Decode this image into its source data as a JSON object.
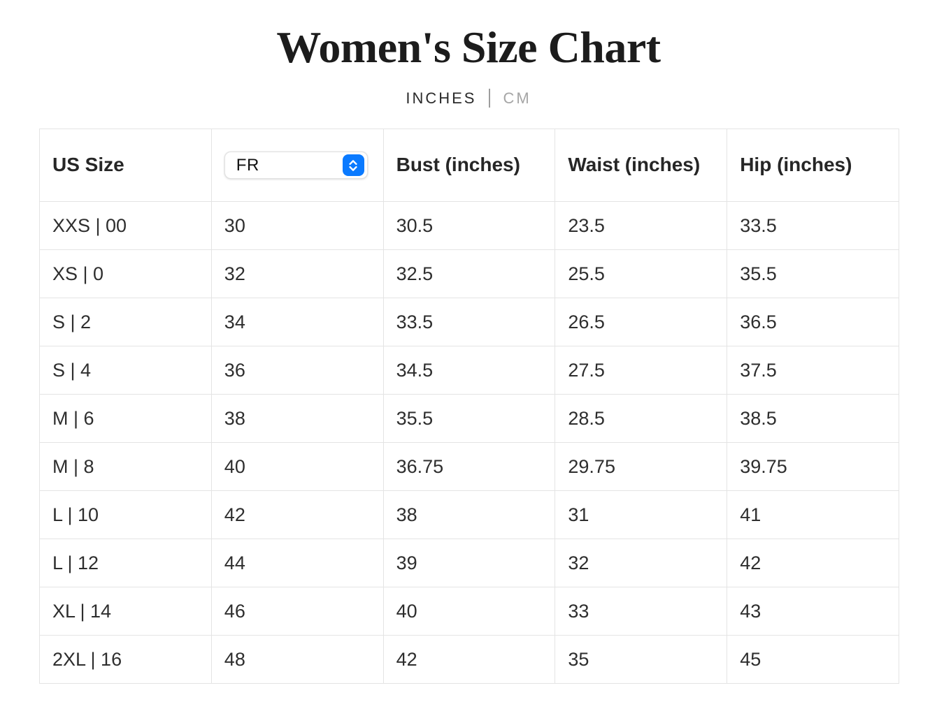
{
  "title": "Women's Size Chart",
  "unit_toggle": {
    "inches_label": "INCHES",
    "cm_label": "CM",
    "selected": "INCHES"
  },
  "size_table": {
    "headers": {
      "us_size": "US Size",
      "bust": "Bust (inches)",
      "waist": "Waist (inches)",
      "hip": "Hip (inches)"
    },
    "country_selector": {
      "selected_value": "FR",
      "icon": "select-arrows-icon"
    },
    "rows": [
      {
        "us_size": "XXS | 00",
        "country_size": "30",
        "bust": "30.5",
        "waist": "23.5",
        "hip": "33.5"
      },
      {
        "us_size": "XS | 0",
        "country_size": "32",
        "bust": "32.5",
        "waist": "25.5",
        "hip": "35.5"
      },
      {
        "us_size": "S | 2",
        "country_size": "34",
        "bust": "33.5",
        "waist": "26.5",
        "hip": "36.5"
      },
      {
        "us_size": "S | 4",
        "country_size": "36",
        "bust": "34.5",
        "waist": "27.5",
        "hip": "37.5"
      },
      {
        "us_size": "M | 6",
        "country_size": "38",
        "bust": "35.5",
        "waist": "28.5",
        "hip": "38.5"
      },
      {
        "us_size": "M | 8",
        "country_size": "40",
        "bust": "36.75",
        "waist": "29.75",
        "hip": "39.75"
      },
      {
        "us_size": "L | 10",
        "country_size": "42",
        "bust": "38",
        "waist": "31",
        "hip": "41"
      },
      {
        "us_size": "L | 12",
        "country_size": "44",
        "bust": "39",
        "waist": "32",
        "hip": "42"
      },
      {
        "us_size": "XL | 14",
        "country_size": "46",
        "bust": "40",
        "waist": "33",
        "hip": "43"
      },
      {
        "us_size": "2XL | 16",
        "country_size": "48",
        "bust": "42",
        "waist": "35",
        "hip": "45"
      }
    ]
  },
  "colors": {
    "accent_blue": "#0a7aff",
    "text_primary": "#2b2b2b",
    "text_muted": "#a6a6a6",
    "grid_line": "#e4e4e4"
  }
}
